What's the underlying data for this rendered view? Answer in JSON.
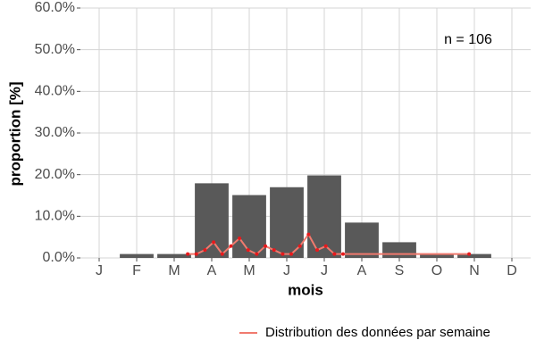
{
  "chart_data": {
    "type": "bar",
    "categories": [
      "J",
      "F",
      "M",
      "A",
      "M",
      "J",
      "J",
      "A",
      "S",
      "O",
      "N",
      "D"
    ],
    "values": [
      0,
      0.94,
      0.94,
      17.92,
      15.09,
      16.98,
      19.81,
      8.49,
      3.77,
      0.94,
      0.94,
      0
    ],
    "color": "#595959",
    "series": [
      {
        "name": "Distribution des données par semaine",
        "type": "line",
        "color": "#f07a6e",
        "point_color": "#e8191c",
        "x": [
          3.36,
          3.59,
          3.82,
          4.05,
          4.28,
          4.51,
          4.74,
          4.97,
          5.2,
          5.43,
          5.66,
          5.89,
          6.12,
          6.35,
          6.58,
          6.81,
          7.04,
          7.27,
          7.5,
          10.86
        ],
        "values": [
          0.94,
          0.94,
          1.89,
          3.77,
          0.94,
          2.83,
          4.72,
          1.89,
          0.94,
          2.83,
          1.89,
          0.94,
          0.94,
          2.83,
          5.66,
          1.89,
          2.83,
          0.94,
          0.94,
          0.94
        ]
      }
    ],
    "xlim": [
      0.5,
      12.5
    ],
    "ylim": [
      0,
      60
    ],
    "yticks": [
      {
        "value": 0,
        "label": "0.0%"
      },
      {
        "value": 10,
        "label": "10.0%"
      },
      {
        "value": 20,
        "label": "20.0%"
      },
      {
        "value": 30,
        "label": "30.0%"
      },
      {
        "value": 40,
        "label": "40.0%"
      },
      {
        "value": 50,
        "label": "50.0%"
      },
      {
        "value": 60,
        "label": "60.0%"
      }
    ],
    "xlabel": "mois",
    "ylabel": "proportion [%]",
    "annotation": "n = 106",
    "grid": true
  }
}
